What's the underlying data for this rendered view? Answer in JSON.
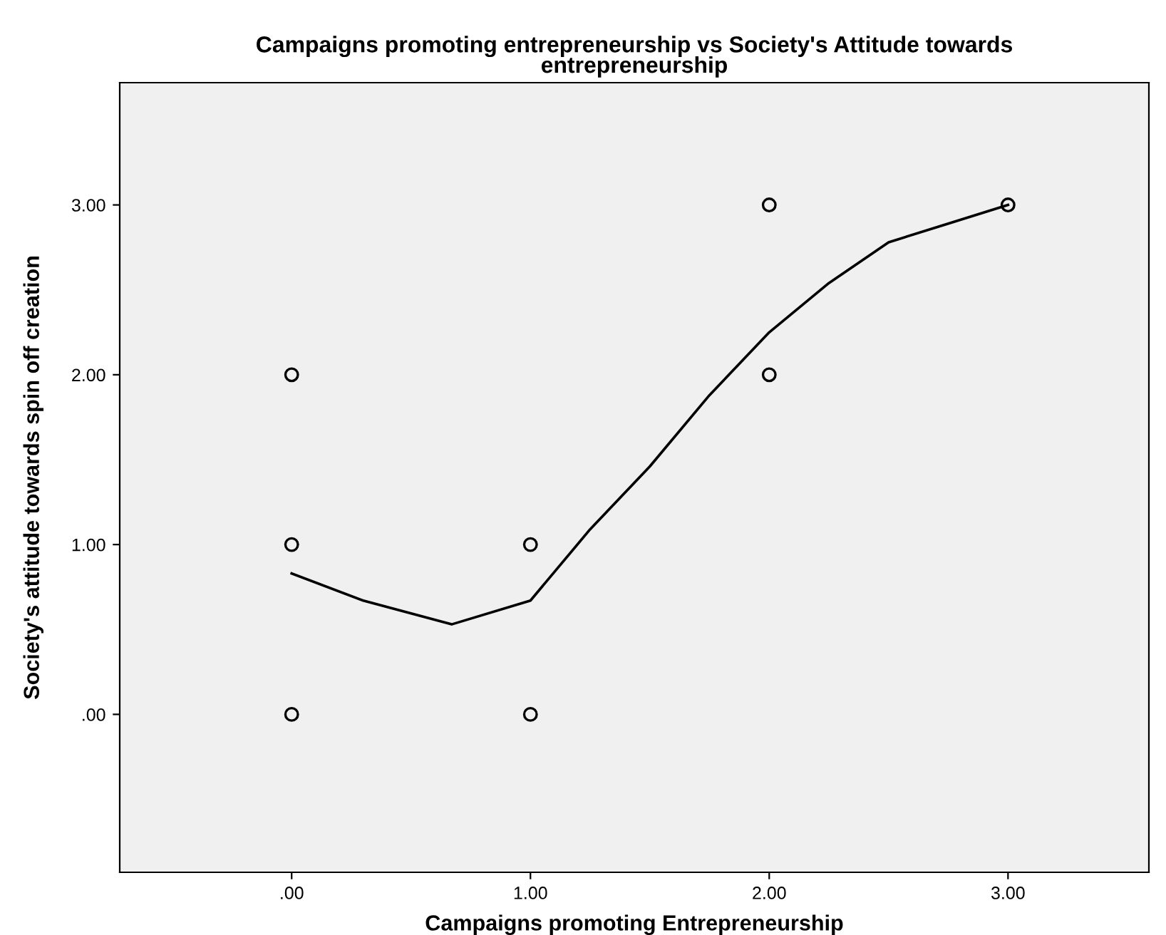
{
  "chart_data": {
    "type": "scatter",
    "title": "Campaigns promoting entrepreneurship vs Society's Attitude towards\nentrepreneurship",
    "xlabel": "Campaigns promoting Entrepreneurship",
    "ylabel": "Society's attitude towards spin off creation",
    "x": [
      0,
      0,
      0,
      1,
      1,
      2,
      2,
      3
    ],
    "series": [
      {
        "type": "scatter",
        "color": "#000000",
        "marker": "circle",
        "values": [
          0,
          1,
          2,
          0,
          1,
          2,
          3,
          3
        ]
      },
      {
        "type": "line",
        "color": "#000000",
        "marker": "none",
        "line_style": "solid",
        "x": [
          0,
          0.3,
          0.67,
          1,
          1.25,
          1.5,
          1.75,
          2,
          2.25,
          2.5,
          2.75,
          3
        ],
        "values": [
          0.83,
          0.67,
          0.53,
          0.67,
          1.09,
          1.46,
          1.88,
          2.25,
          2.54,
          2.78,
          2.89,
          3.0
        ]
      }
    ],
    "xlim": [
      -0.72,
      3.59
    ],
    "ylim": [
      -0.93,
      3.72
    ],
    "xticks": [
      {
        "value": 0,
        "label": ".00"
      },
      {
        "value": 1,
        "label": "1.00"
      },
      {
        "value": 2,
        "label": "2.00"
      },
      {
        "value": 3,
        "label": "3.00"
      }
    ],
    "yticks": [
      {
        "value": 0,
        "label": ".00"
      },
      {
        "value": 1,
        "label": "1.00"
      },
      {
        "value": 2,
        "label": "2.00"
      },
      {
        "value": 3,
        "label": "3.00"
      }
    ],
    "grid": false,
    "legend": false
  }
}
